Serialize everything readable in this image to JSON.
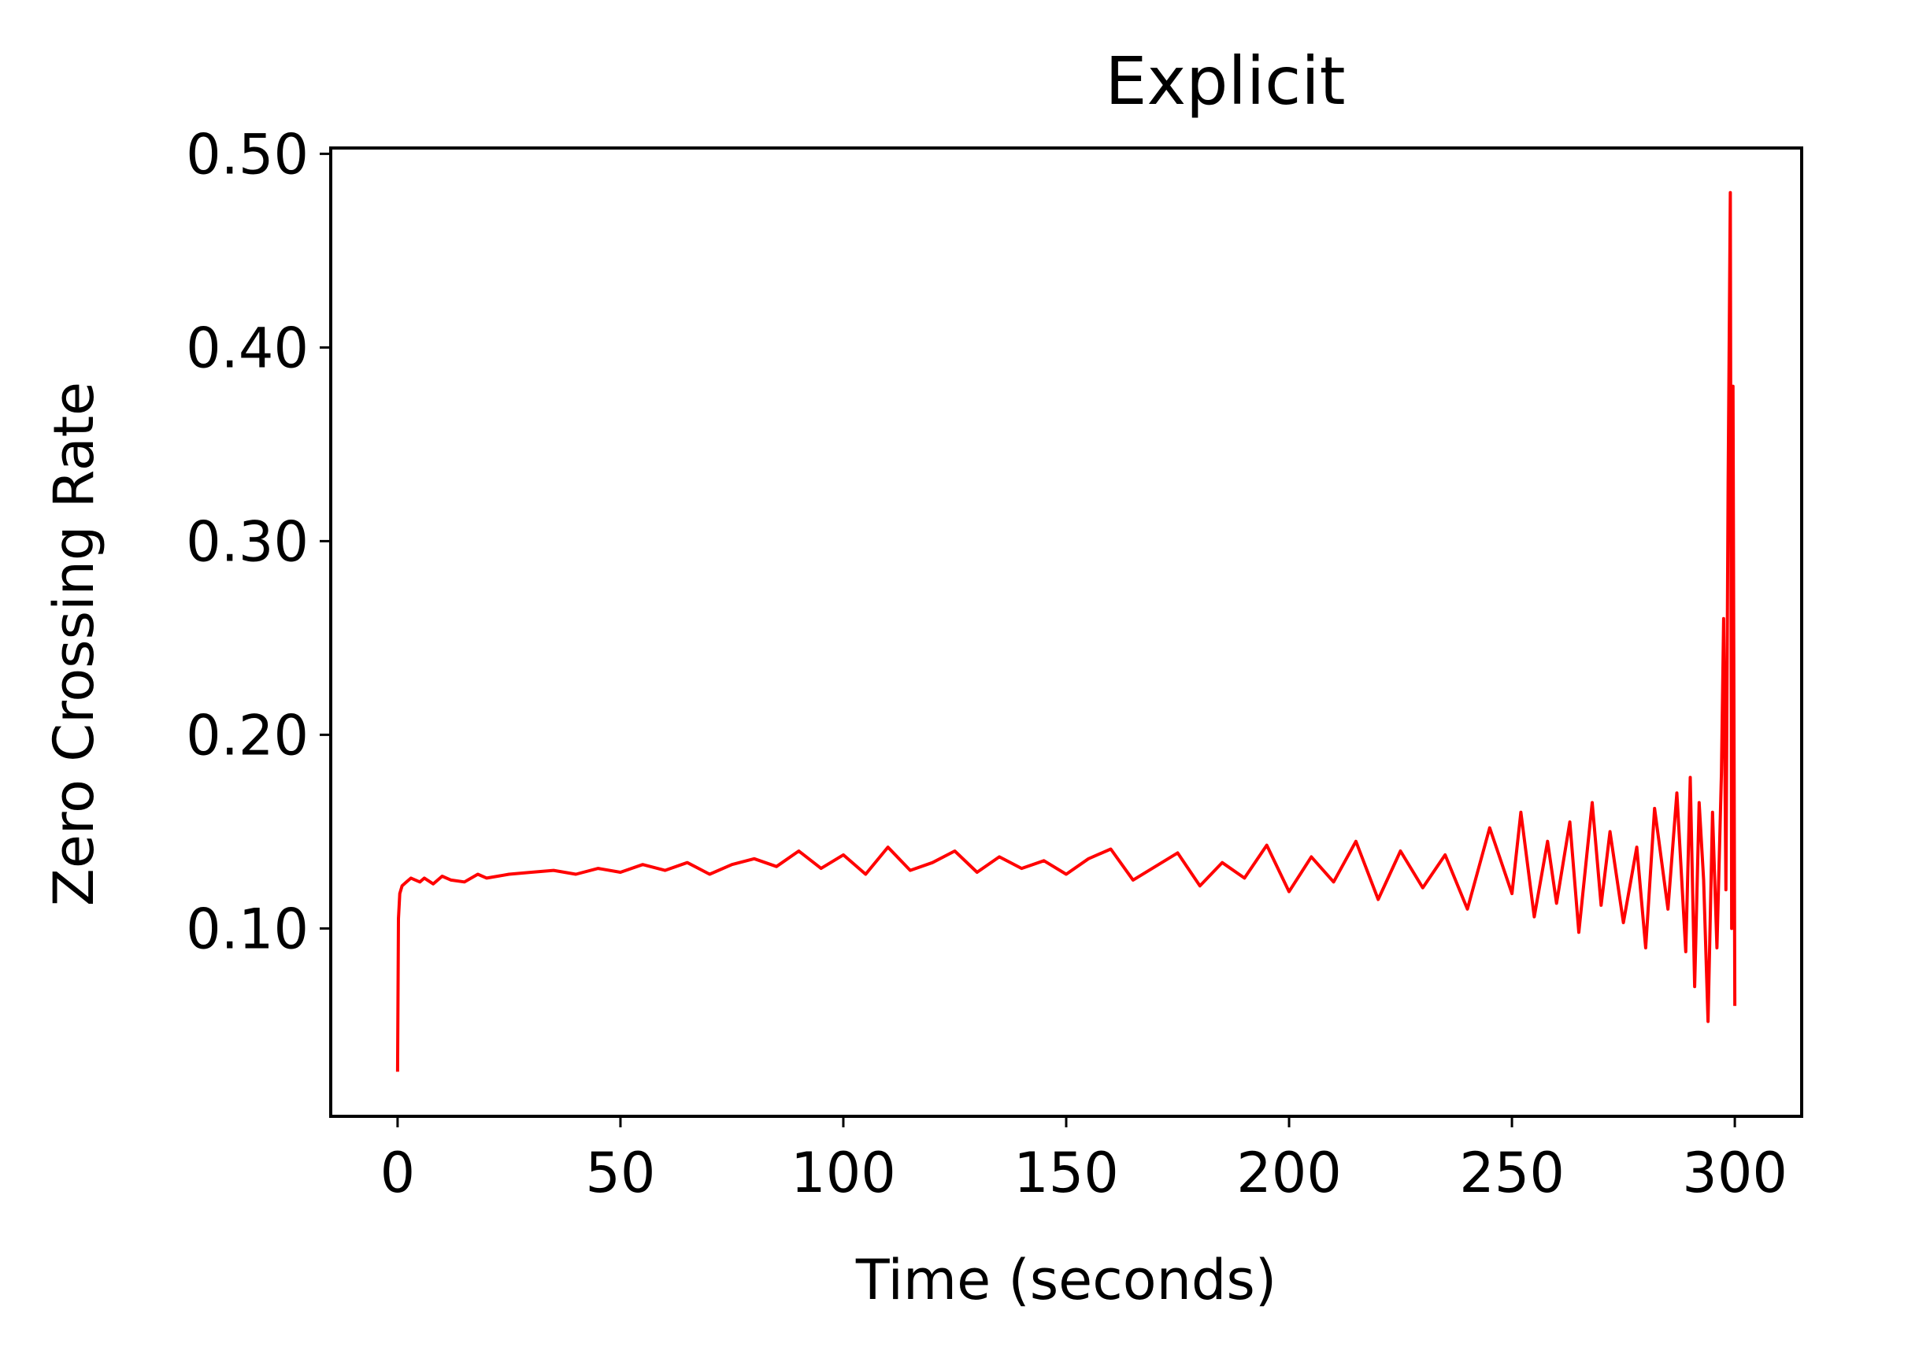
{
  "chart_data": {
    "type": "line",
    "title": "Explicit",
    "xlabel": "Time (seconds)",
    "ylabel": "Zero Crossing Rate",
    "xlim": [
      -15,
      315
    ],
    "ylim": [
      0.003,
      0.503
    ],
    "xticks": [
      0,
      50,
      100,
      150,
      200,
      250,
      300
    ],
    "xtick_labels": [
      "0",
      "50",
      "100",
      "150",
      "200",
      "250",
      "300"
    ],
    "yticks": [
      0.1,
      0.2,
      0.3,
      0.4,
      0.5
    ],
    "ytick_labels": [
      "0.10",
      "0.20",
      "0.30",
      "0.40",
      "0.50"
    ],
    "grid": false,
    "legend": "none",
    "series": [
      {
        "color": "#ff0000",
        "x": [
          0,
          0.2,
          0.5,
          1,
          2,
          3,
          4,
          5,
          6,
          8,
          10,
          12,
          15,
          18,
          20,
          25,
          30,
          35,
          40,
          45,
          50,
          55,
          60,
          65,
          70,
          75,
          80,
          85,
          90,
          95,
          100,
          105,
          110,
          115,
          120,
          125,
          130,
          135,
          140,
          145,
          150,
          155,
          160,
          165,
          170,
          175,
          180,
          185,
          190,
          195,
          200,
          205,
          210,
          215,
          220,
          225,
          230,
          235,
          240,
          245,
          250,
          252,
          255,
          258,
          260,
          263,
          265,
          268,
          270,
          272,
          275,
          278,
          280,
          282,
          285,
          287,
          289,
          290,
          291,
          292,
          293,
          294,
          295,
          296,
          297,
          297.5,
          298,
          298.5,
          299,
          299.3,
          299.6,
          300
        ],
        "y": [
          0.026,
          0.105,
          0.118,
          0.122,
          0.124,
          0.126,
          0.125,
          0.124,
          0.126,
          0.123,
          0.127,
          0.125,
          0.124,
          0.128,
          0.126,
          0.128,
          0.129,
          0.13,
          0.128,
          0.131,
          0.129,
          0.133,
          0.13,
          0.134,
          0.128,
          0.133,
          0.136,
          0.132,
          0.14,
          0.131,
          0.138,
          0.128,
          0.142,
          0.13,
          0.134,
          0.14,
          0.129,
          0.137,
          0.131,
          0.135,
          0.128,
          0.136,
          0.141,
          0.125,
          0.132,
          0.139,
          0.122,
          0.134,
          0.126,
          0.143,
          0.119,
          0.137,
          0.124,
          0.145,
          0.115,
          0.14,
          0.121,
          0.138,
          0.11,
          0.152,
          0.118,
          0.16,
          0.106,
          0.145,
          0.113,
          0.155,
          0.098,
          0.165,
          0.112,
          0.15,
          0.103,
          0.142,
          0.09,
          0.162,
          0.11,
          0.17,
          0.088,
          0.178,
          0.07,
          0.165,
          0.125,
          0.052,
          0.16,
          0.09,
          0.18,
          0.26,
          0.12,
          0.33,
          0.48,
          0.1,
          0.38,
          0.06
        ]
      }
    ]
  }
}
